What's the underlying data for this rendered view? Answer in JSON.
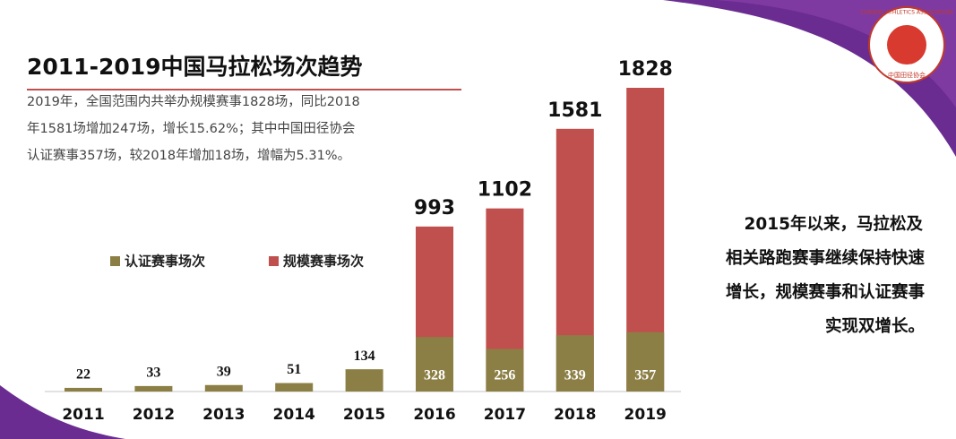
{
  "chart_data": {
    "type": "bar",
    "title": "2011-2019中国马拉松场次趋势",
    "description_lines": [
      "2019年，全国范围内共举办规模赛事1828场，同比2018",
      "年1581场增加247场，增长15.62%；其中中国田径协会",
      "认证赛事357场，较2018年增加18场，增幅为5.31%。"
    ],
    "annotation_lines": [
      "2015年以来，马拉松及",
      "相关路跑赛事继续保持快速",
      "增长，规模赛事和认证赛事",
      "实现双增长。"
    ],
    "categories": [
      "2011",
      "2012",
      "2013",
      "2014",
      "2015",
      "2016",
      "2017",
      "2018",
      "2019"
    ],
    "series": [
      {
        "name": "规模赛事场次",
        "color": "#c0504d",
        "values": [
          null,
          null,
          null,
          null,
          null,
          993,
          1102,
          1581,
          1828
        ]
      },
      {
        "name": "认证赛事场次",
        "color": "#8c7f45",
        "values": [
          22,
          33,
          39,
          51,
          134,
          328,
          256,
          339,
          357
        ]
      }
    ]
  },
  "logo": {
    "text": "CHINESE ATHLETICS ASSOCIATION",
    "subtext": "中国田径协会"
  }
}
